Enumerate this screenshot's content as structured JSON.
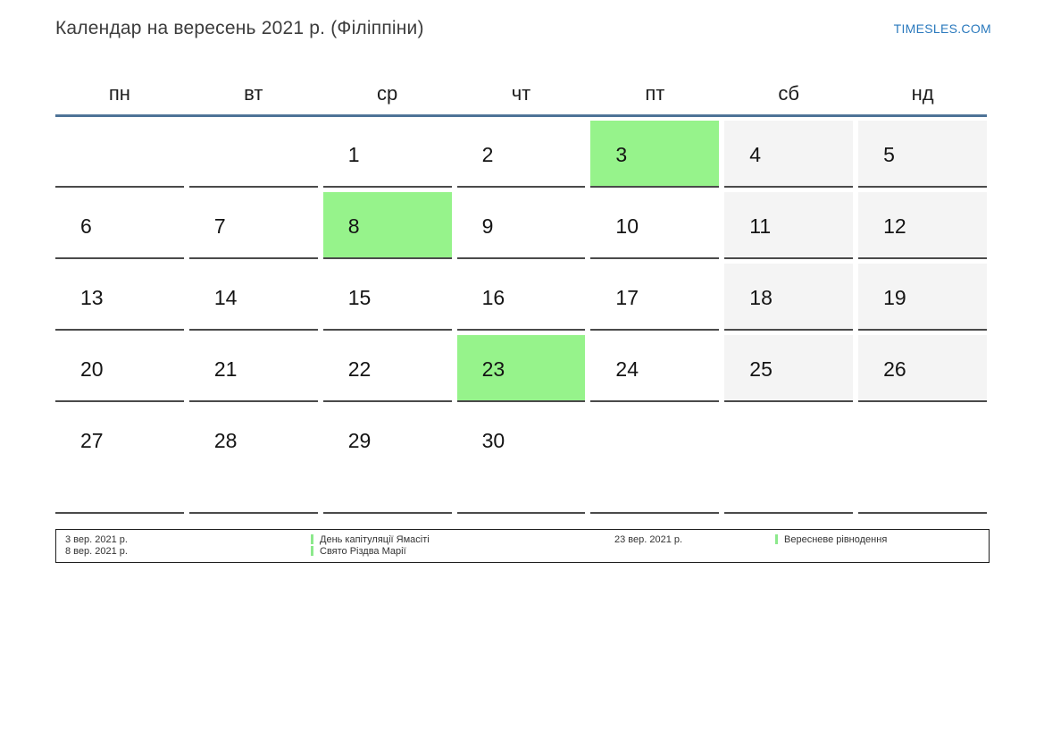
{
  "header": {
    "title": "Календар на вересень 2021 р. (Філіппіни)",
    "site_link": "TIMESLES.COM"
  },
  "calendar": {
    "weekdays": [
      "пн",
      "вт",
      "ср",
      "чт",
      "пт",
      "сб",
      "нд"
    ],
    "weeks": [
      [
        {
          "day": ""
        },
        {
          "day": ""
        },
        {
          "day": "1"
        },
        {
          "day": "2"
        },
        {
          "day": "3",
          "type": "holiday"
        },
        {
          "day": "4",
          "type": "weekend"
        },
        {
          "day": "5",
          "type": "weekend"
        }
      ],
      [
        {
          "day": "6"
        },
        {
          "day": "7"
        },
        {
          "day": "8",
          "type": "holiday"
        },
        {
          "day": "9"
        },
        {
          "day": "10"
        },
        {
          "day": "11",
          "type": "weekend"
        },
        {
          "day": "12",
          "type": "weekend"
        }
      ],
      [
        {
          "day": "13"
        },
        {
          "day": "14"
        },
        {
          "day": "15"
        },
        {
          "day": "16"
        },
        {
          "day": "17"
        },
        {
          "day": "18",
          "type": "weekend"
        },
        {
          "day": "19",
          "type": "weekend"
        }
      ],
      [
        {
          "day": "20"
        },
        {
          "day": "21"
        },
        {
          "day": "22"
        },
        {
          "day": "23",
          "type": "holiday"
        },
        {
          "day": "24"
        },
        {
          "day": "25",
          "type": "weekend"
        },
        {
          "day": "26",
          "type": "weekend"
        }
      ],
      [
        {
          "day": "27"
        },
        {
          "day": "28"
        },
        {
          "day": "29"
        },
        {
          "day": "30"
        },
        {
          "day": ""
        },
        {
          "day": ""
        },
        {
          "day": ""
        }
      ]
    ],
    "highlighted_days": [
      "3",
      "8",
      "23"
    ]
  },
  "legend": {
    "groups": [
      {
        "entries": [
          {
            "date": "3 вер. 2021 р.",
            "label": "День капітуляції Ямасіті"
          },
          {
            "date": "8 вер. 2021 р.",
            "label": "Свято Різдва Марії"
          }
        ]
      },
      {
        "entries": [
          {
            "date": "23 вер. 2021 р.",
            "label": "Вересневе рівнодення"
          }
        ]
      }
    ]
  },
  "colors": {
    "holiday_highlight": "#96F38B",
    "weekend_bg": "#F4F4F4",
    "header_line": "#4E7397",
    "link_blue": "#2A79BD",
    "legend_marker": "#8CE98C",
    "cell_border": "#4A4A4A"
  }
}
